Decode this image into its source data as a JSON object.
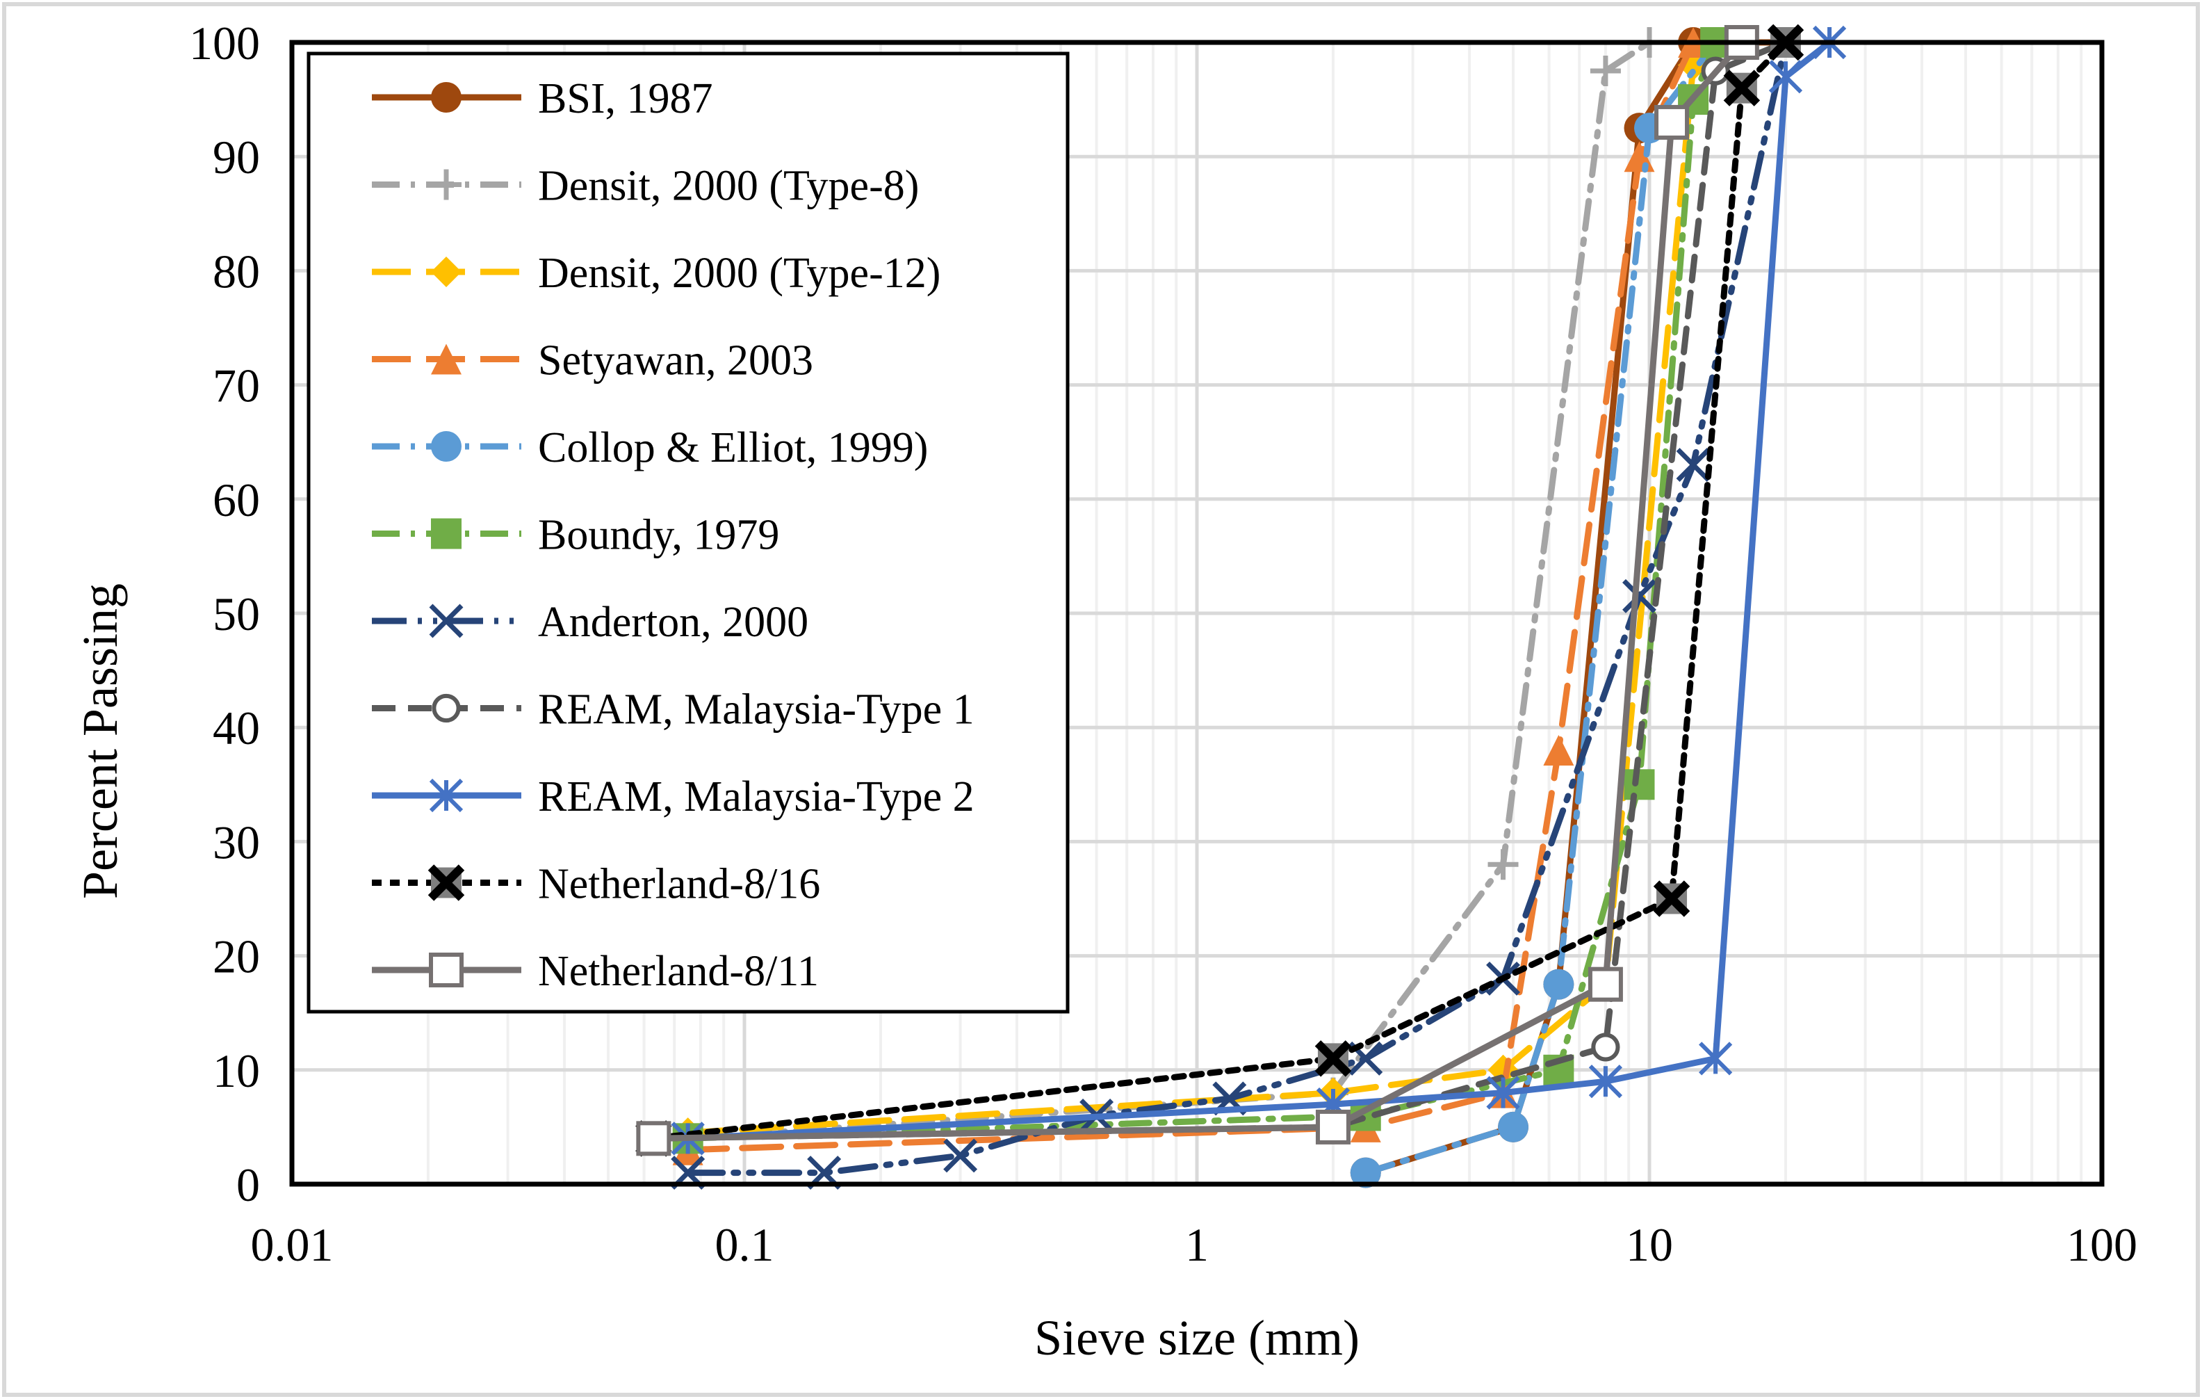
{
  "chart_data": {
    "type": "line",
    "title": "",
    "xlabel": "Sieve size (mm)",
    "ylabel": "Percent Passing",
    "xscale": "log",
    "xlim": [
      0.01,
      100
    ],
    "ylim": [
      0,
      100
    ],
    "xticks": [
      "0.01",
      "0.1",
      "1",
      "10",
      "100"
    ],
    "yticks": [
      "0",
      "10",
      "20",
      "30",
      "40",
      "50",
      "60",
      "70",
      "80",
      "90",
      "100"
    ],
    "grid": true,
    "legend_position": "top-left",
    "series": [
      {
        "name": "BSI, 1987",
        "color": "#9E480E",
        "dash": "solid",
        "marker": "circle",
        "points": [
          [
            2.36,
            1
          ],
          [
            5,
            5
          ],
          [
            6.3,
            17.5
          ],
          [
            9.5,
            92.5
          ],
          [
            12.5,
            100
          ],
          [
            20,
            100
          ]
        ]
      },
      {
        "name": "Densit, 2000 (Type-8)",
        "color": "#A5A5A5",
        "dash": "dashdot",
        "marker": "plus",
        "points": [
          [
            0.075,
            4
          ],
          [
            2,
            8
          ],
          [
            4.75,
            28
          ],
          [
            8,
            97.5
          ],
          [
            10,
            100
          ]
        ]
      },
      {
        "name": "Densit, 2000 (Type-12)",
        "color": "#FFC000",
        "dash": "longdash",
        "marker": "diamond",
        "points": [
          [
            0.075,
            4.5
          ],
          [
            2,
            8
          ],
          [
            4.75,
            10
          ],
          [
            8,
            17.5
          ],
          [
            12.5,
            98
          ],
          [
            16,
            100
          ]
        ]
      },
      {
        "name": "Setyawan, 2003",
        "color": "#ED7D31",
        "dash": "longdash",
        "marker": "triangle",
        "points": [
          [
            0.075,
            3
          ],
          [
            2.36,
            5
          ],
          [
            4.75,
            8
          ],
          [
            6.3,
            38
          ],
          [
            9.5,
            90
          ],
          [
            12.5,
            100
          ]
        ]
      },
      {
        "name": "Collop & Elliot, 1999)",
        "color": "#5B9BD5",
        "dash": "dashdot",
        "marker": "circle",
        "points": [
          [
            2.36,
            1
          ],
          [
            5,
            5
          ],
          [
            6.3,
            17.5
          ],
          [
            10,
            92.5
          ],
          [
            14,
            100
          ]
        ]
      },
      {
        "name": "Boundy, 1979",
        "color": "#70AD47",
        "dash": "dashdot",
        "marker": "square",
        "points": [
          [
            0.075,
            4
          ],
          [
            2.36,
            6
          ],
          [
            6.3,
            10
          ],
          [
            9.5,
            35
          ],
          [
            12.5,
            95
          ],
          [
            14,
            100
          ]
        ]
      },
      {
        "name": "Anderton, 2000",
        "color": "#264478",
        "dash": "longdashdotdot",
        "marker": "x",
        "points": [
          [
            0.075,
            1
          ],
          [
            0.15,
            1
          ],
          [
            0.3,
            2.5
          ],
          [
            0.6,
            6
          ],
          [
            1.18,
            7.5
          ],
          [
            2.36,
            11
          ],
          [
            4.75,
            18
          ],
          [
            9.5,
            51.5
          ],
          [
            12.5,
            63
          ],
          [
            20,
            100
          ]
        ]
      },
      {
        "name": "REAM, Malaysia-Type 1",
        "color": "#595959",
        "dash": "dash",
        "marker": "open-circle",
        "points": [
          [
            0.063,
            4
          ],
          [
            2,
            5
          ],
          [
            8,
            12
          ],
          [
            14,
            97.5
          ],
          [
            20,
            100
          ]
        ]
      },
      {
        "name": "REAM, Malaysia-Type 2",
        "color": "#4472C4",
        "dash": "solid",
        "marker": "asterisk",
        "points": [
          [
            0.075,
            4
          ],
          [
            2,
            7
          ],
          [
            4.75,
            8
          ],
          [
            8,
            9
          ],
          [
            14,
            11
          ],
          [
            20,
            97
          ],
          [
            25,
            100
          ]
        ]
      },
      {
        "name": "Netherland-8/16",
        "color": "#000000",
        "dash": "dot",
        "marker": "bold-x",
        "points": [
          [
            0.063,
            4
          ],
          [
            2,
            11
          ],
          [
            11.2,
            25
          ],
          [
            16,
            96
          ],
          [
            20,
            100
          ]
        ]
      },
      {
        "name": "Netherland-8/11",
        "color": "#767171",
        "dash": "solid",
        "marker": "open-square",
        "points": [
          [
            0.063,
            4
          ],
          [
            2,
            5
          ],
          [
            8,
            17.5
          ],
          [
            11.2,
            93
          ],
          [
            16,
            100
          ]
        ]
      }
    ]
  }
}
